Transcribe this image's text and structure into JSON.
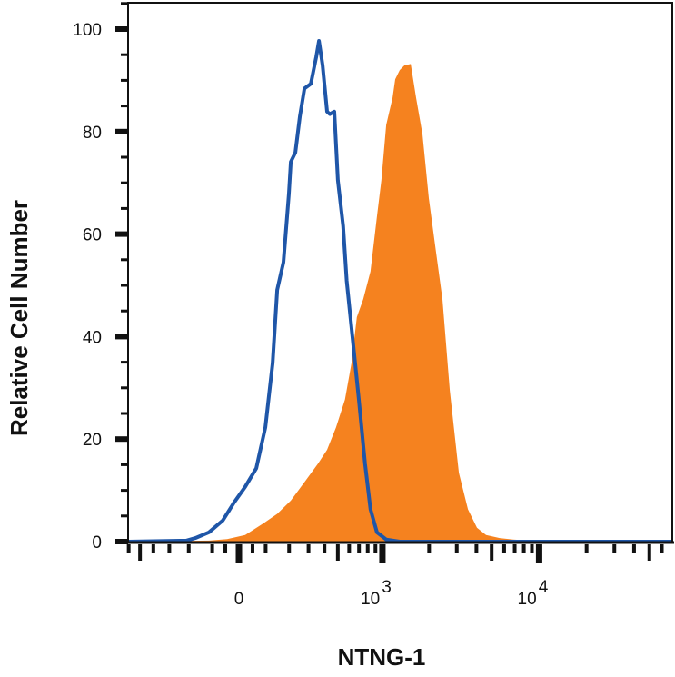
{
  "chart_data": {
    "type": "area",
    "title": "",
    "xlabel": "NTNG-1",
    "ylabel": "Relative Cell Number",
    "x_scale": "biexponential",
    "xlim": [
      -613,
      69800
    ],
    "ylim": [
      0,
      100
    ],
    "grid": false,
    "legend": "none",
    "y_ticks": [
      {
        "value": 0,
        "label": "0"
      },
      {
        "value": 20,
        "label": "20"
      },
      {
        "value": 40,
        "label": "40"
      },
      {
        "value": 60,
        "label": "60"
      },
      {
        "value": 80,
        "label": "80"
      },
      {
        "value": 100,
        "label": "100"
      }
    ],
    "x_ticks": [
      {
        "value": 0,
        "label": "0",
        "base": "0",
        "exp": ""
      },
      {
        "value": 1000,
        "label": "10^3",
        "base": "10",
        "exp": "3"
      },
      {
        "value": 10000,
        "label": "10^4",
        "base": "10",
        "exp": "4"
      }
    ],
    "series": [
      {
        "style": "filled",
        "color": "#F5821F",
        "x": [
          -613,
          -113,
          -43,
          23,
          92,
          147,
          208,
          277,
          357,
          418,
          486,
          561,
          622,
          677,
          747,
          835,
          920,
          985,
          1058,
          1164,
          1210,
          1295,
          1388,
          1525,
          1650,
          1812,
          1990,
          2218,
          2433,
          2708,
          3095,
          3533,
          4035,
          4607,
          5620,
          6857,
          10900,
          69800
        ],
        "y": [
          0,
          0.2,
          0.5,
          1.3,
          3.6,
          5.4,
          8.0,
          11.6,
          15.2,
          17.9,
          22.3,
          27.7,
          34.8,
          43.8,
          47.3,
          52.7,
          63.4,
          70.5,
          81.3,
          86.6,
          90.2,
          92.0,
          92.9,
          93.2,
          86.6,
          79.5,
          67.0,
          56.3,
          47.3,
          29.5,
          13.4,
          6.3,
          2.7,
          1.3,
          0.7,
          0.4,
          0,
          0
        ]
      },
      {
        "style": "outline",
        "color": "#1F56A8",
        "x": [
          -613,
          -212,
          -170,
          -113,
          -60,
          -17,
          23,
          64,
          99,
          128,
          147,
          174,
          199,
          208,
          230,
          253,
          277,
          313,
          346,
          363,
          387,
          418,
          438,
          472,
          500,
          545,
          577,
          630,
          698,
          768,
          835,
          920,
          1058,
          1295,
          69800
        ],
        "y": [
          0,
          0.2,
          0.7,
          1.8,
          4.1,
          7.7,
          10.7,
          14.3,
          22.3,
          34.8,
          49.1,
          54.5,
          67.9,
          74.1,
          75.9,
          83.0,
          88.4,
          89.3,
          94.6,
          97.7,
          92.9,
          83.9,
          83.4,
          83.9,
          70.5,
          61.6,
          50.9,
          40.2,
          27.7,
          15.2,
          6.3,
          1.8,
          0.4,
          0,
          0
        ]
      }
    ]
  }
}
